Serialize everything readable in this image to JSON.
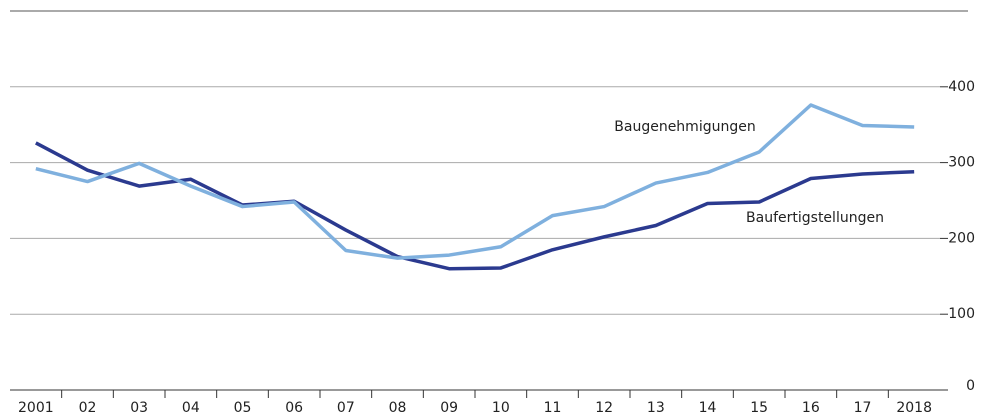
{
  "chart_data": {
    "type": "line",
    "categories": [
      "2001",
      "02",
      "03",
      "04",
      "05",
      "06",
      "07",
      "08",
      "09",
      "10",
      "11",
      "12",
      "13",
      "14",
      "15",
      "16",
      "17",
      "2018"
    ],
    "series": [
      {
        "name": "Baufertigstellungen",
        "color": "#2b3a8f",
        "values": [
          326,
          290,
          269,
          278,
          244,
          249,
          211,
          176,
          160,
          161,
          185,
          202,
          217,
          246,
          248,
          279,
          285,
          288
        ]
      },
      {
        "name": "Baugenehmigungen",
        "color": "#7fb0de",
        "values": [
          292,
          275,
          299,
          269,
          242,
          248,
          184,
          174,
          178,
          189,
          230,
          242,
          273,
          287,
          314,
          376,
          349,
          347
        ]
      }
    ],
    "ylim": [
      0,
      500
    ],
    "yticks": [
      0,
      100,
      200,
      300,
      400
    ],
    "grid": true,
    "y_axis_side": "right"
  }
}
